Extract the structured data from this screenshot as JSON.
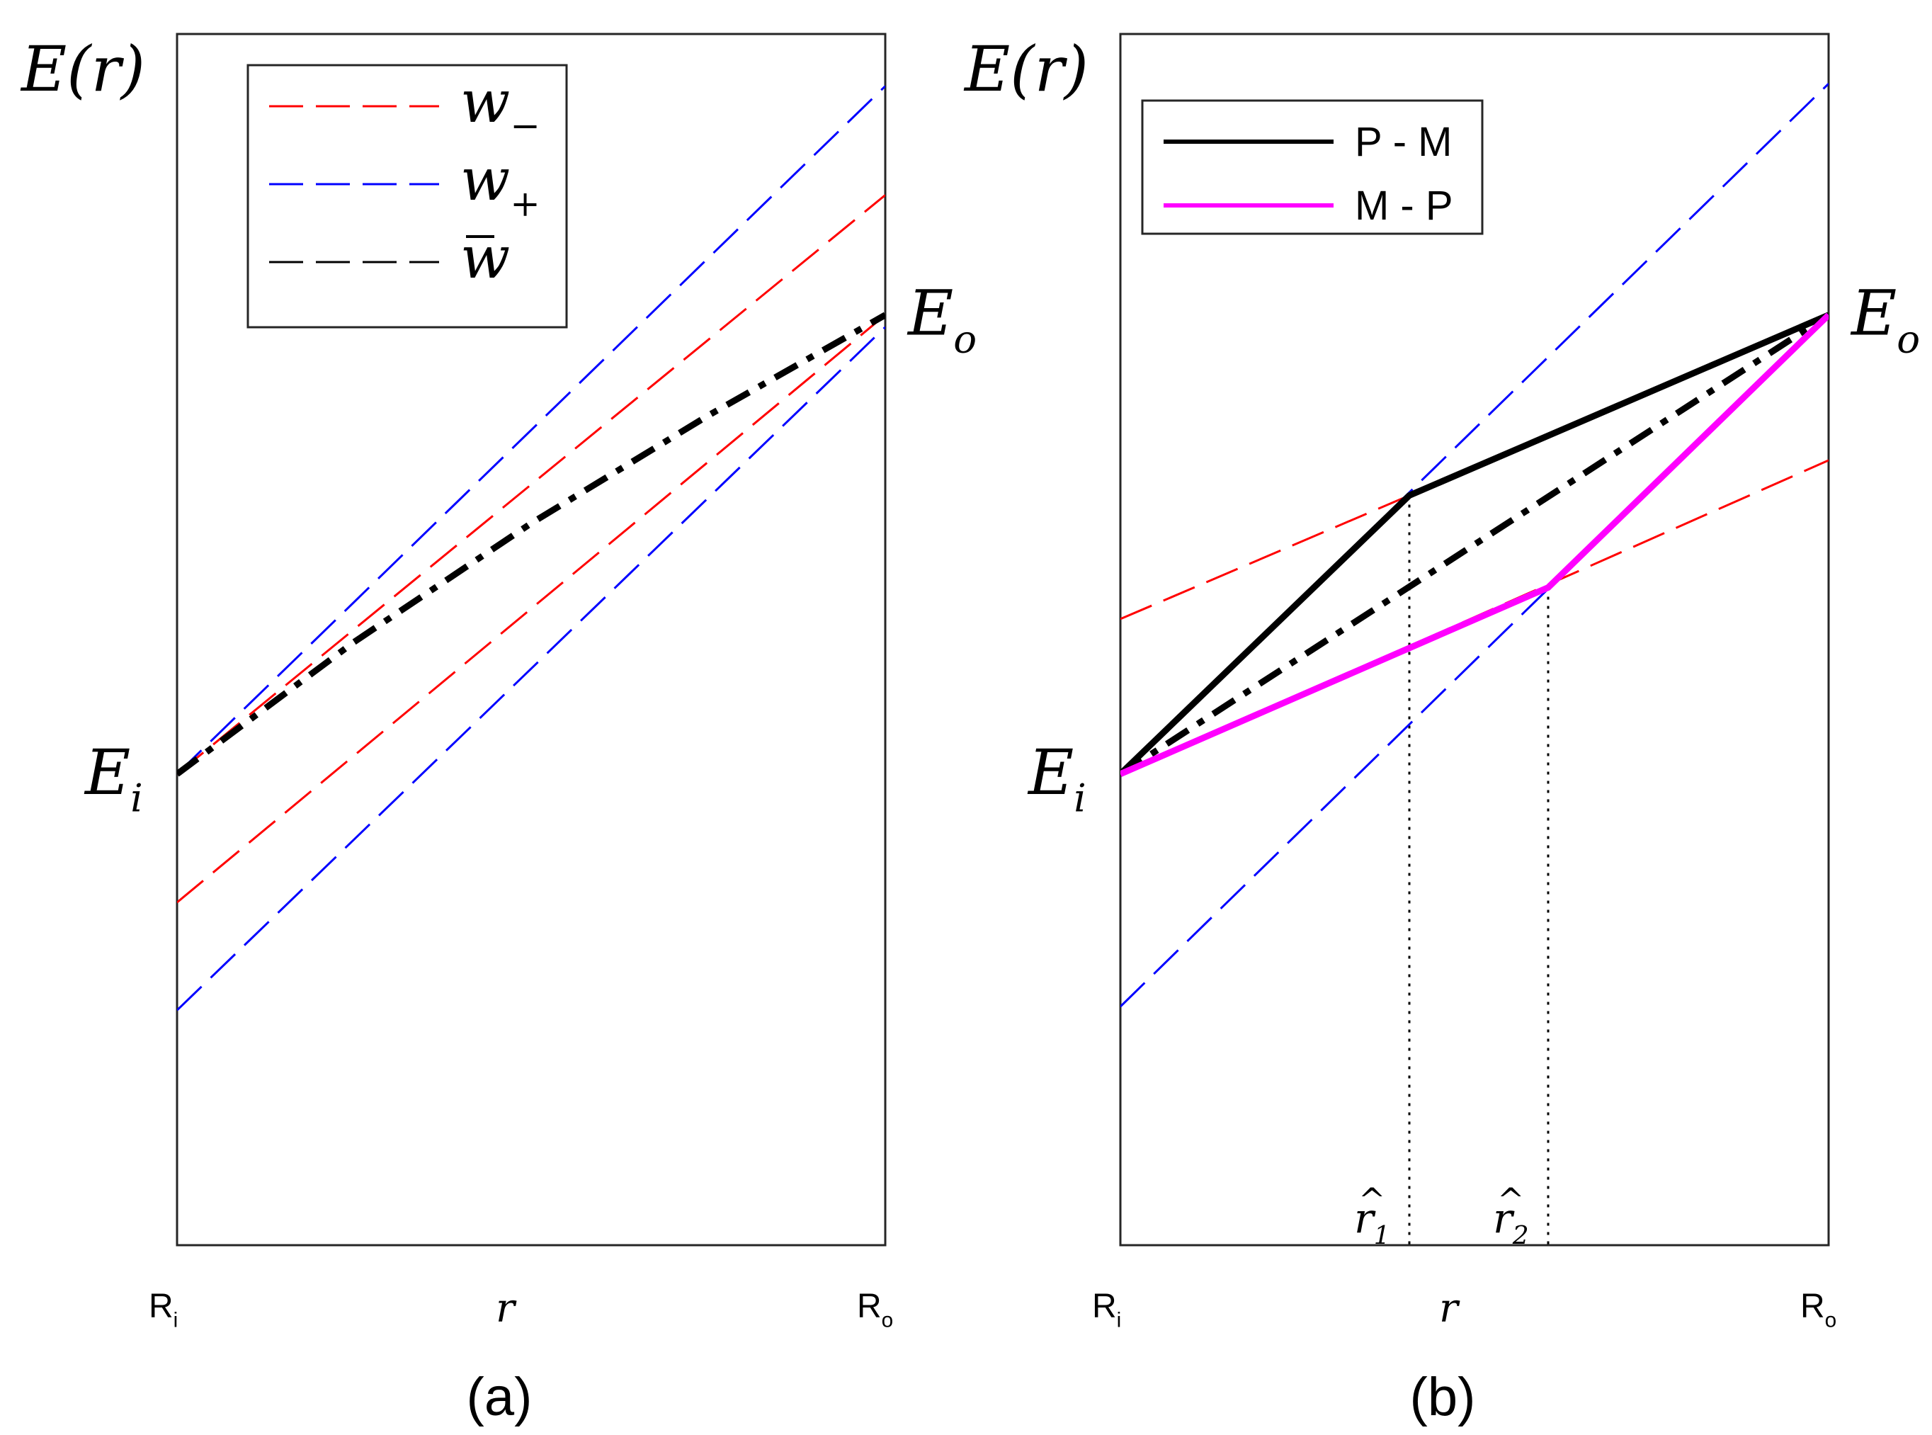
{
  "chart_data": [
    {
      "panel_label": "(a)",
      "type": "line",
      "ylabel": "E(r)",
      "xlabel": "r",
      "xticks": {
        "left_main": "R",
        "left_sub": "i",
        "right_main": "R",
        "right_sub": "o"
      },
      "xlim": [
        0,
        1
      ],
      "ylim": [
        0,
        1
      ],
      "grid": false,
      "legend": {
        "position": "top-left",
        "entries": [
          {
            "main": "w",
            "sub": "−",
            "color": "#ff0000",
            "style": "dashed"
          },
          {
            "main": "w",
            "sub": "+",
            "color": "#0000ff",
            "style": "dashed"
          },
          {
            "main": "w",
            "sub": "",
            "bar": true,
            "color": "#000000",
            "style": "dash-dot"
          }
        ]
      },
      "annotations": [
        {
          "text": "E",
          "sub": "i",
          "x": 0,
          "y": 0.389,
          "side": "left"
        },
        {
          "text": "E",
          "sub": "o",
          "x": 1,
          "y": 0.768,
          "side": "right"
        }
      ],
      "series": [
        {
          "name": "w-minus upper",
          "color": "#ff0000",
          "style": "dashed",
          "x": [
            0,
            1
          ],
          "y": [
            0.389,
            0.867
          ]
        },
        {
          "name": "w-minus lower",
          "color": "#ff0000",
          "style": "dashed",
          "x": [
            0,
            1
          ],
          "y": [
            0.283,
            0.768
          ]
        },
        {
          "name": "w-plus upper",
          "color": "#0000ff",
          "style": "dashed",
          "x": [
            0,
            1
          ],
          "y": [
            0.389,
            0.957
          ]
        },
        {
          "name": "w-plus lower",
          "color": "#0000ff",
          "style": "dashed",
          "x": [
            0,
            1
          ],
          "y": [
            0.194,
            0.758
          ]
        },
        {
          "name": "w-bar",
          "color": "#000000",
          "style": "dash-dot",
          "x": [
            0,
            0.25,
            0.5,
            0.75,
            1
          ],
          "y": [
            0.389,
            0.498,
            0.596,
            0.685,
            0.768
          ]
        }
      ]
    },
    {
      "panel_label": "(b)",
      "type": "line",
      "ylabel": "E(r)",
      "xlabel": "r",
      "xticks": {
        "left_main": "R",
        "left_sub": "i",
        "right_main": "R",
        "right_sub": "o"
      },
      "xlim": [
        0,
        1
      ],
      "ylim": [
        0,
        1
      ],
      "grid": false,
      "legend": {
        "position": "top-left",
        "entries": [
          {
            "label": "P - M",
            "color": "#000000",
            "style": "solid"
          },
          {
            "label": "M - P",
            "color": "#ff00ff",
            "style": "solid"
          }
        ]
      },
      "annotations": [
        {
          "text": "E",
          "sub": "i",
          "x": 0,
          "y": 0.389,
          "side": "left"
        },
        {
          "text": "E",
          "sub": "o",
          "x": 1,
          "y": 0.768,
          "side": "right"
        }
      ],
      "markers": [
        {
          "label_main": "r",
          "label_sub": "1",
          "x": 0.408,
          "y_top": 0.619
        },
        {
          "label_main": "r",
          "label_sub": "2",
          "x": 0.604,
          "y_top": 0.543
        }
      ],
      "series": [
        {
          "name": "w-minus upper",
          "color": "#ff0000",
          "style": "dashed",
          "x": [
            0.408,
            1
          ],
          "y": [
            0.619,
            0.768
          ]
        },
        {
          "name": "w-minus upper ext",
          "color": "#ff0000",
          "style": "dashed",
          "x": [
            0,
            0.408
          ],
          "y": [
            0.517,
            0.619
          ]
        },
        {
          "name": "w-minus lower",
          "color": "#ff0000",
          "style": "dashed",
          "x": [
            0,
            1
          ],
          "y": [
            0.389,
            0.648
          ]
        },
        {
          "name": "w-plus upper",
          "color": "#0000ff",
          "style": "dashed",
          "x": [
            0,
            1
          ],
          "y": [
            0.389,
            0.959
          ]
        },
        {
          "name": "w-plus lower",
          "color": "#0000ff",
          "style": "dashed",
          "x": [
            0,
            1
          ],
          "y": [
            0.197,
            0.768
          ]
        },
        {
          "name": "w-bar",
          "color": "#000000",
          "style": "dash-dot",
          "x": [
            0,
            1
          ],
          "y": [
            0.389,
            0.768
          ]
        },
        {
          "name": "P - M",
          "color": "#000000",
          "style": "solid",
          "x": [
            0,
            0.408,
            1
          ],
          "y": [
            0.389,
            0.619,
            0.768
          ]
        },
        {
          "name": "M - P",
          "color": "#ff00ff",
          "style": "solid",
          "x": [
            0,
            0.604,
            1
          ],
          "y": [
            0.389,
            0.543,
            0.768
          ]
        }
      ]
    }
  ]
}
